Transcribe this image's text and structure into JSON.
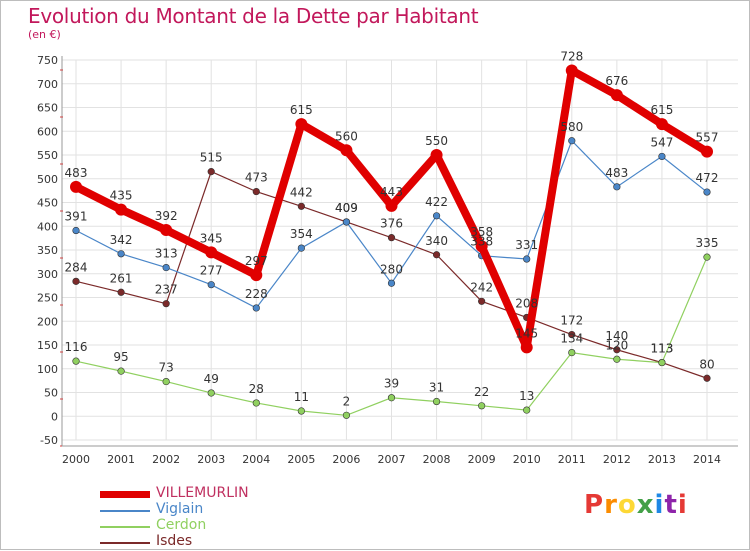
{
  "header": {
    "title": "Evolution du Montant de la Dette par Habitant",
    "subtitle": "(en €)"
  },
  "logo": {
    "text": "Proxiti",
    "colors": [
      "#e53935",
      "#fb8c00",
      "#fdd835",
      "#43a047",
      "#1e88e5",
      "#8e24aa",
      "#e53935"
    ]
  },
  "chart_data": {
    "type": "line",
    "title": "Evolution du Montant de la Dette par Habitant",
    "subtitle": "(en €)",
    "x": [
      "2000",
      "2001",
      "2002",
      "2003",
      "2004",
      "2005",
      "2006",
      "2007",
      "2008",
      "2009",
      "2010",
      "2011",
      "2012",
      "2013",
      "2014"
    ],
    "y_ticks": [
      "-50",
      "0",
      "50",
      "100",
      "150",
      "200",
      "250",
      "300",
      "350",
      "400",
      "450",
      "500",
      "550",
      "600",
      "650",
      "700",
      "750"
    ],
    "ylim": [
      -50,
      750
    ],
    "grid": true,
    "legend_position": "bottom-left",
    "series": [
      {
        "name": "VILLEMURLIN",
        "color": "#e00000",
        "values": [
          483,
          435,
          392,
          345,
          297,
          615,
          560,
          443,
          550,
          358,
          145,
          728,
          676,
          615,
          557
        ],
        "labels": [
          "483",
          "435",
          "392",
          "345",
          "297",
          "615",
          "560",
          "443",
          "550",
          "358",
          "145",
          "728",
          "676",
          "615",
          "557"
        ]
      },
      {
        "name": "Viglain",
        "color": "#4a86c8",
        "values": [
          391,
          342,
          313,
          277,
          228,
          354,
          409,
          280,
          422,
          338,
          331,
          580,
          483,
          547,
          472
        ],
        "labels": [
          "391",
          "342",
          "313",
          "277",
          "228",
          "354",
          "409",
          "280",
          "422",
          "338",
          "331",
          "580",
          "483",
          "547",
          "472"
        ]
      },
      {
        "name": "Cerdon",
        "color": "#90d060",
        "values": [
          116,
          95,
          73,
          49,
          28,
          11,
          2,
          39,
          31,
          22,
          13,
          134,
          120,
          113,
          335
        ],
        "labels": [
          "116",
          "95",
          "73",
          "49",
          "28",
          "11",
          "2",
          "39",
          "31",
          "22",
          "13",
          "134",
          "120",
          "113",
          "335"
        ]
      },
      {
        "name": "Isdes",
        "color": "#7b2a2a",
        "values": [
          284,
          261,
          237,
          515,
          473,
          442,
          409,
          376,
          340,
          242,
          208,
          172,
          140,
          113,
          80
        ],
        "labels": [
          "284",
          "261",
          "237",
          "515",
          "473",
          "442",
          "409",
          "376",
          "340",
          "242",
          "208",
          "172",
          "140",
          "113",
          "80"
        ]
      }
    ]
  }
}
